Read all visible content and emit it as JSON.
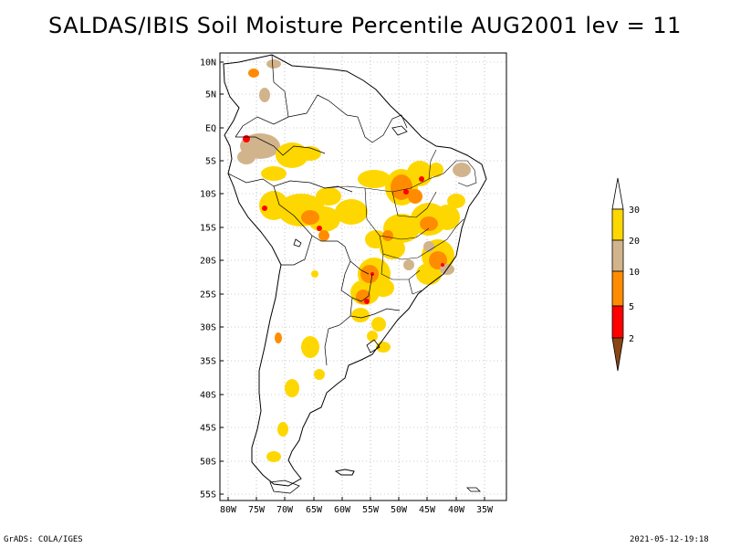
{
  "title": "SALDAS/IBIS Soil Moisture Percentile AUG2001 lev = 11",
  "map": {
    "lat_labels": [
      "10N",
      "5N",
      "EQ",
      "5S",
      "10S",
      "15S",
      "20S",
      "25S",
      "30S",
      "35S",
      "40S",
      "45S",
      "50S",
      "55S"
    ],
    "lon_labels": [
      "80W",
      "75W",
      "70W",
      "65W",
      "60W",
      "55W",
      "50W",
      "45W",
      "40W",
      "35W"
    ],
    "colors": {
      "land_outline": "#000000",
      "gridline": "#999999"
    }
  },
  "colorbar": {
    "labels": [
      "30",
      "20",
      "10",
      "5",
      "2"
    ],
    "colors": {
      "above_30": "#ffffff",
      "20_30": "#ffd700",
      "10_20": "#d2b48c",
      "5_10": "#ff8c00",
      "2_5": "#ff0000",
      "below_2": "#8b4513"
    }
  },
  "footer": {
    "left": "GrADS: COLA/IGES",
    "right": "2021-05-12-19:18"
  }
}
